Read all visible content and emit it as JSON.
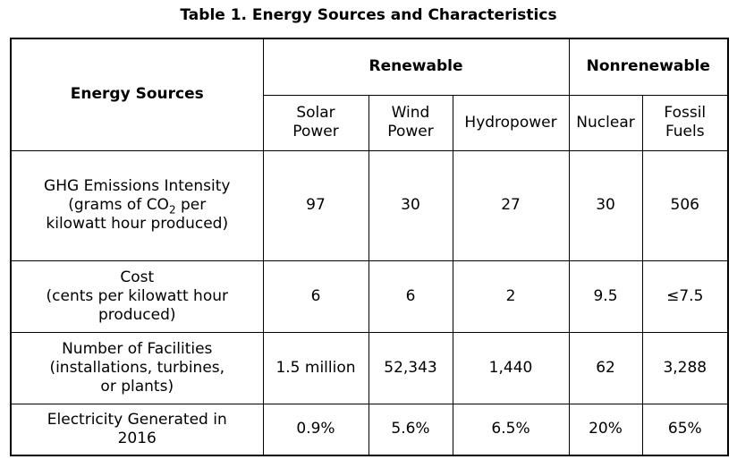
{
  "caption": "Table 1. Energy Sources and Characteristics",
  "corner_header": "Energy Sources",
  "groups": {
    "renewable": "Renewable",
    "nonrenewable": "Nonrenewable"
  },
  "sources": {
    "solar": [
      "Solar",
      "Power"
    ],
    "wind": [
      "Wind",
      "Power"
    ],
    "hydro": "Hydropower",
    "nuclear": "Nuclear",
    "fossil": [
      "Fossil",
      "Fuels"
    ]
  },
  "rows": {
    "ghg": {
      "label_line1": "GHG Emissions Intensity",
      "label_line2_pre": "(grams of CO",
      "label_line2_sub": "2",
      "label_line2_post": " per",
      "label_line3": "kilowatt hour produced)",
      "values": [
        "97",
        "30",
        "27",
        "30",
        "506"
      ]
    },
    "cost": {
      "label_line1": "Cost",
      "label_line2": "(cents per kilowatt hour",
      "label_line3": "produced)",
      "values": [
        "6",
        "6",
        "2",
        "9.5",
        "≤7.5"
      ]
    },
    "facilities": {
      "label_line1": "Number of Facilities",
      "label_line2": "(installations, turbines,",
      "label_line3": "or plants)",
      "values": [
        "1.5 million",
        "52,343",
        "1,440",
        "62",
        "3,288"
      ]
    },
    "electricity": {
      "label_line1": "Electricity Generated in",
      "label_line2": "2016",
      "values": [
        "0.9%",
        "5.6%",
        "6.5%",
        "20%",
        "65%"
      ]
    }
  }
}
